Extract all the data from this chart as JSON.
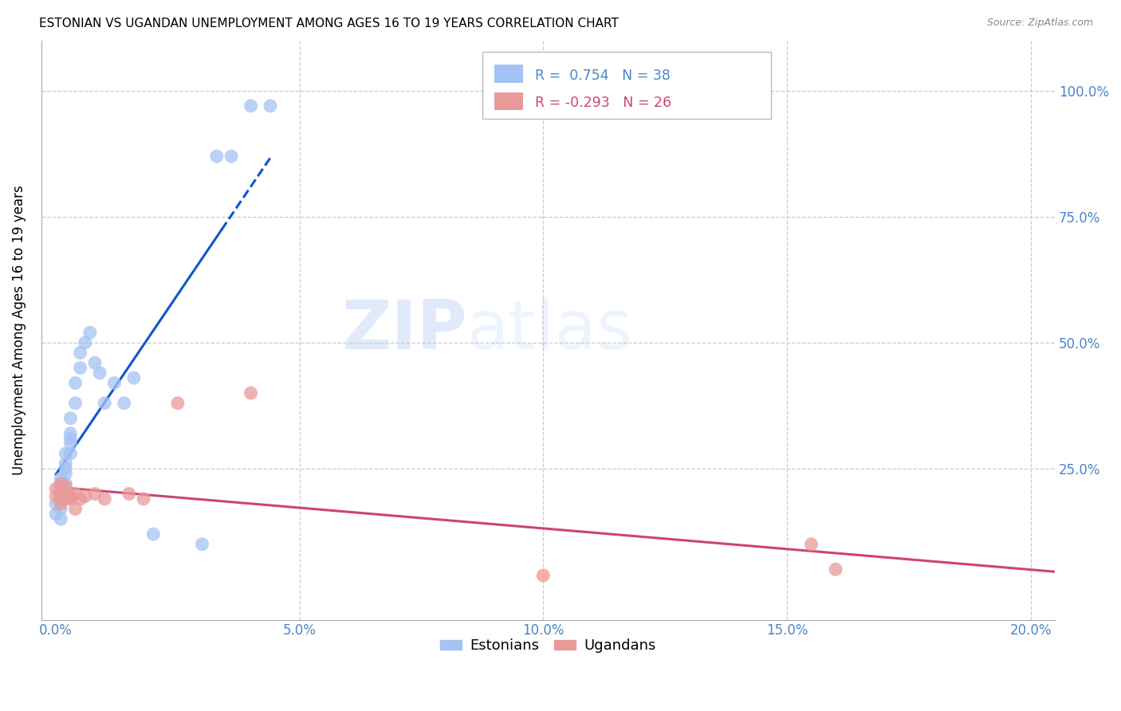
{
  "title": "ESTONIAN VS UGANDAN UNEMPLOYMENT AMONG AGES 16 TO 19 YEARS CORRELATION CHART",
  "source": "Source: ZipAtlas.com",
  "ylabel": "Unemployment Among Ages 16 to 19 years",
  "legend_label1": "Estonians",
  "legend_label2": "Ugandans",
  "r1": "0.754",
  "n1": "38",
  "r2": "-0.293",
  "n2": "26",
  "blue_color": "#a4c2f4",
  "pink_color": "#ea9999",
  "blue_line_color": "#1155cc",
  "pink_line_color": "#cc4477",
  "estonian_x": [
    0.0,
    0.0,
    0.001,
    0.001,
    0.001,
    0.001,
    0.001,
    0.001,
    0.001,
    0.002,
    0.002,
    0.002,
    0.002,
    0.002,
    0.002,
    0.003,
    0.003,
    0.003,
    0.003,
    0.003,
    0.004,
    0.004,
    0.005,
    0.005,
    0.006,
    0.007,
    0.008,
    0.009,
    0.01,
    0.012,
    0.014,
    0.016,
    0.02,
    0.03,
    0.033,
    0.036,
    0.04,
    0.044
  ],
  "estonian_y": [
    0.18,
    0.16,
    0.21,
    0.19,
    0.22,
    0.17,
    0.2,
    0.23,
    0.15,
    0.25,
    0.28,
    0.24,
    0.2,
    0.22,
    0.26,
    0.3,
    0.32,
    0.28,
    0.35,
    0.31,
    0.38,
    0.42,
    0.45,
    0.48,
    0.5,
    0.52,
    0.46,
    0.44,
    0.38,
    0.42,
    0.38,
    0.43,
    0.12,
    0.1,
    0.87,
    0.87,
    0.97,
    0.97
  ],
  "ugandan_x": [
    0.0,
    0.0,
    0.001,
    0.001,
    0.001,
    0.001,
    0.002,
    0.002,
    0.002,
    0.002,
    0.003,
    0.003,
    0.003,
    0.004,
    0.004,
    0.005,
    0.006,
    0.008,
    0.01,
    0.015,
    0.018,
    0.025,
    0.04,
    0.1,
    0.155,
    0.16
  ],
  "ugandan_y": [
    0.195,
    0.21,
    0.18,
    0.22,
    0.2,
    0.195,
    0.195,
    0.19,
    0.215,
    0.195,
    0.19,
    0.195,
    0.195,
    0.2,
    0.17,
    0.19,
    0.195,
    0.2,
    0.19,
    0.2,
    0.19,
    0.38,
    0.4,
    0.038,
    0.1,
    0.05
  ],
  "xlim": [
    -0.003,
    0.205
  ],
  "ylim": [
    -0.05,
    1.1
  ],
  "xticks": [
    0.0,
    0.05,
    0.1,
    0.15,
    0.2
  ],
  "xticklabels": [
    "0.0%",
    "5.0%",
    "10.0%",
    "15.0%",
    "20.0%"
  ],
  "yticks": [
    0.0,
    0.25,
    0.5,
    0.75,
    1.0
  ],
  "yticklabels_right": [
    "",
    "25.0%",
    "50.0%",
    "75.0%",
    "100.0%"
  ]
}
